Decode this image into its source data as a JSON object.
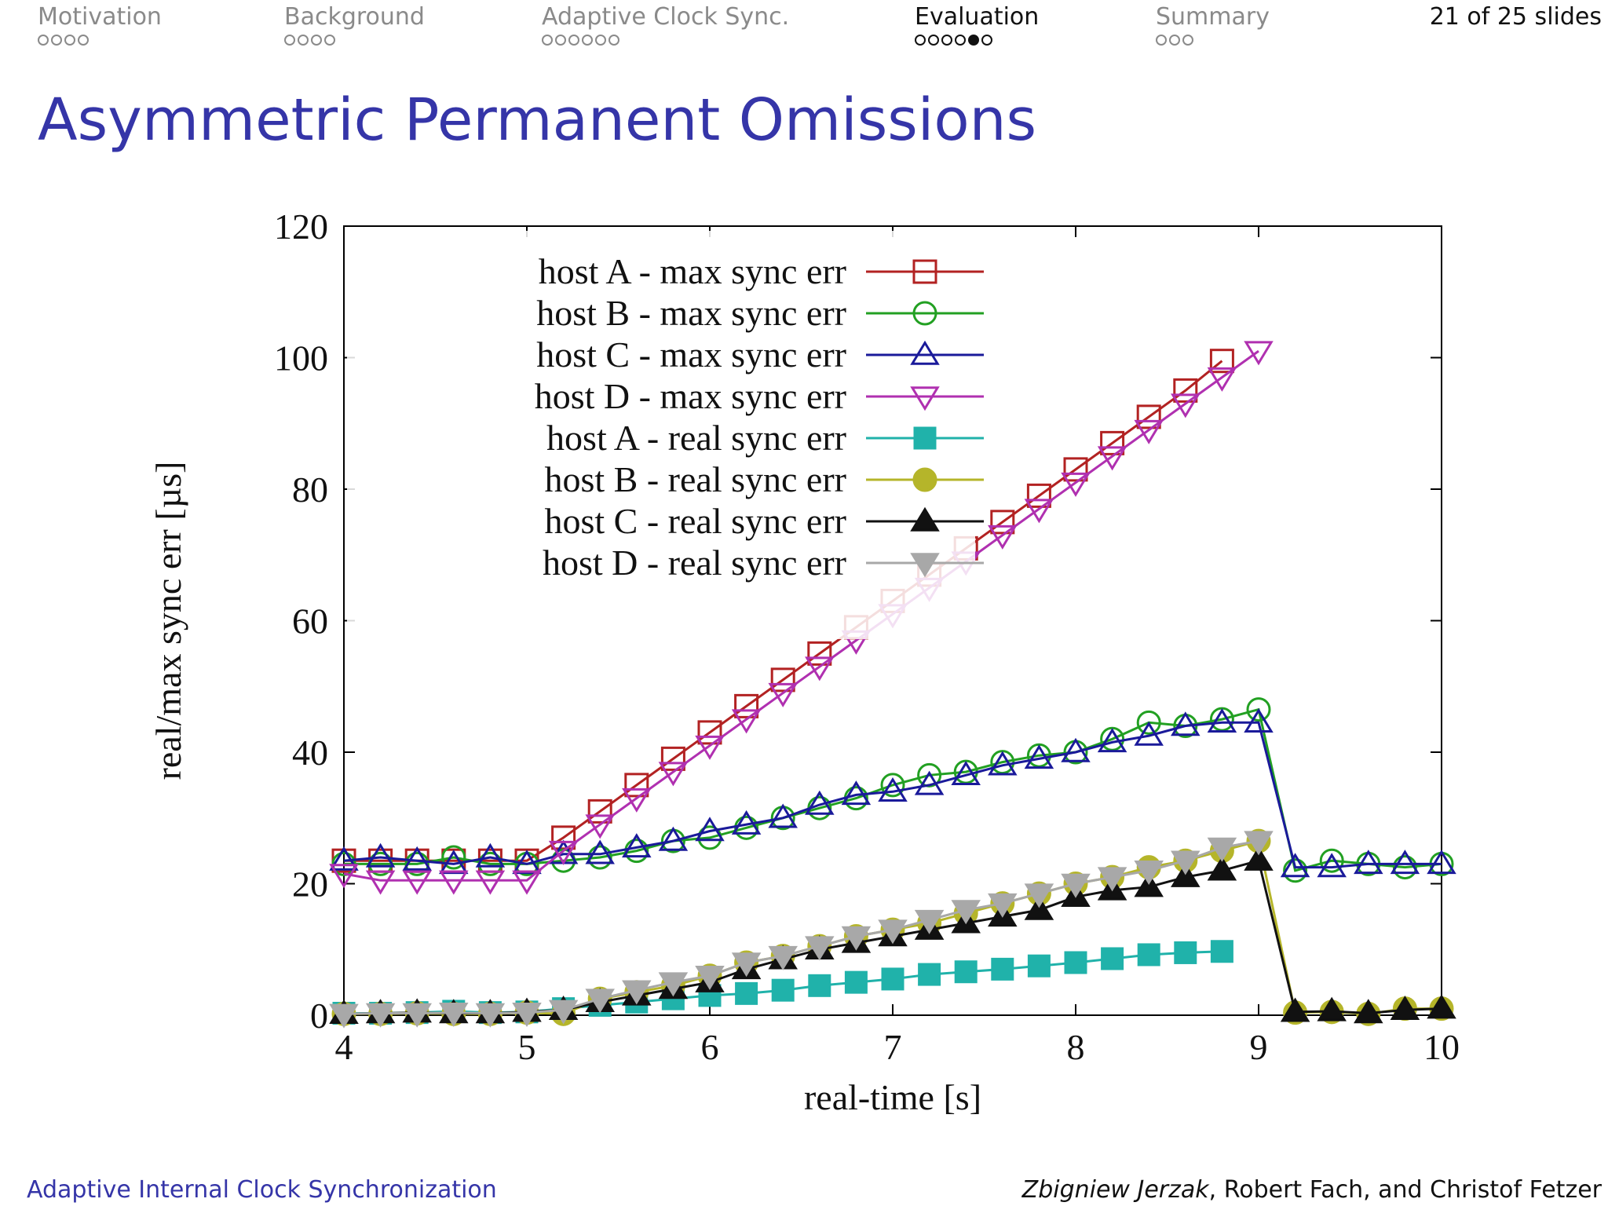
{
  "nav": {
    "sections": [
      {
        "label": "Motivation",
        "dots": 4,
        "filled": [],
        "active": false
      },
      {
        "label": "Background",
        "dots": 4,
        "filled": [],
        "active": false
      },
      {
        "label": "Adaptive Clock Sync.",
        "dots": 6,
        "filled": [],
        "active": false
      },
      {
        "label": "Evaluation",
        "dots": 6,
        "filled": [
          4
        ],
        "active": true
      },
      {
        "label": "Summary",
        "dots": 3,
        "filled": [],
        "active": false
      }
    ],
    "slide_counter": "21 of 25 slides"
  },
  "title": "Asymmetric Permanent Omissions",
  "footer": {
    "left": "Adaptive Internal Clock Synchronization",
    "author_primary": "Zbigniew Jerzak",
    "author_rest": ", Robert Fach, and Christof Fetzer"
  },
  "chart_data": {
    "type": "line",
    "title": "",
    "xlabel": "real-time [s]",
    "ylabel": "real/max sync err [µs]",
    "xlim": [
      4,
      10
    ],
    "ylim": [
      0,
      120
    ],
    "xticks": [
      4,
      5,
      6,
      7,
      8,
      9,
      10
    ],
    "yticks": [
      0,
      20,
      40,
      60,
      80,
      100,
      120
    ],
    "grid": false,
    "legend_position": "top-left",
    "series": [
      {
        "name": "host A - max sync err",
        "color": "#b22222",
        "marker": "square-open",
        "x": [
          4,
          4.2,
          4.4,
          4.6,
          4.8,
          5,
          5.2,
          5.4,
          5.6,
          5.8,
          6,
          6.2,
          6.4,
          6.6,
          6.8,
          7,
          7.2,
          7.4,
          7.6,
          7.8,
          8,
          8.2,
          8.4,
          8.6,
          8.8
        ],
        "y": [
          23.5,
          23.5,
          23.5,
          23.5,
          23.5,
          23.5,
          27,
          31,
          35,
          39,
          43,
          47,
          51,
          55,
          59,
          63,
          67,
          71,
          75,
          79,
          83,
          87,
          91,
          95,
          99.5
        ]
      },
      {
        "name": "host B - max sync err",
        "color": "#22a022",
        "marker": "circle-open",
        "x": [
          4,
          4.2,
          4.4,
          4.6,
          4.8,
          5,
          5.2,
          5.4,
          5.6,
          5.8,
          6,
          6.2,
          6.4,
          6.6,
          6.8,
          7,
          7.2,
          7.4,
          7.6,
          7.8,
          8,
          8.2,
          8.4,
          8.6,
          8.8,
          9,
          9.2,
          9.4,
          9.6,
          9.8,
          10
        ],
        "y": [
          23,
          23,
          23,
          24,
          23,
          23,
          23.5,
          24,
          25,
          26.5,
          27,
          28.5,
          30,
          31.5,
          33,
          35,
          36.5,
          37,
          38.5,
          39.5,
          40,
          42,
          44.5,
          44,
          45,
          46.5,
          22,
          23.5,
          23,
          22.5,
          23
        ]
      },
      {
        "name": "host C - max sync err",
        "color": "#1a1a9a",
        "marker": "triangle-up-open",
        "x": [
          4,
          4.2,
          4.4,
          4.6,
          4.8,
          5,
          5.2,
          5.4,
          5.6,
          5.8,
          6,
          6.2,
          6.4,
          6.6,
          6.8,
          7,
          7.2,
          7.4,
          7.6,
          7.8,
          8,
          8.2,
          8.4,
          8.6,
          8.8,
          9,
          9.2,
          9.4,
          9.6,
          9.8,
          10
        ],
        "y": [
          23.5,
          24,
          23.5,
          23,
          24,
          23,
          24.5,
          24.5,
          25.5,
          26.5,
          28,
          29,
          30,
          32,
          33.5,
          34,
          35,
          36.5,
          38,
          39,
          40,
          41.5,
          42.5,
          44,
          44.5,
          44.5,
          22.5,
          22.5,
          23,
          23,
          23
        ]
      },
      {
        "name": "host D - max sync err",
        "color": "#b030b0",
        "marker": "triangle-down-open",
        "x": [
          4,
          4.2,
          4.4,
          4.6,
          4.8,
          5,
          5.2,
          5.4,
          5.6,
          5.8,
          6,
          6.2,
          6.4,
          6.6,
          6.8,
          7,
          7.2,
          7.4,
          7.6,
          7.8,
          8,
          8.2,
          8.4,
          8.6,
          8.8,
          9
        ],
        "y": [
          21.5,
          20.5,
          20.5,
          20.5,
          20.5,
          20.5,
          25,
          29,
          33,
          37,
          41,
          45,
          49,
          53,
          57,
          61,
          65,
          69,
          73,
          77,
          81,
          85,
          89,
          93,
          97,
          101
        ]
      },
      {
        "name": "host A - real sync err",
        "color": "#20b2aa",
        "marker": "square-filled",
        "x": [
          4,
          4.2,
          4.4,
          4.6,
          4.8,
          5,
          5.2,
          5.4,
          5.6,
          5.8,
          6,
          6.2,
          6.4,
          6.6,
          6.8,
          7,
          7.2,
          7.4,
          7.6,
          7.8,
          8,
          8.2,
          8.4,
          8.6,
          8.8
        ],
        "y": [
          0.3,
          0.3,
          0.4,
          0.6,
          0.4,
          0.5,
          1,
          1.5,
          2,
          2.5,
          3,
          3.3,
          3.8,
          4.5,
          5,
          5.5,
          6.2,
          6.6,
          7,
          7.5,
          8,
          8.6,
          9.2,
          9.5,
          9.7
        ]
      },
      {
        "name": "host B - real sync err",
        "color": "#b5b52a",
        "marker": "circle-filled",
        "x": [
          4,
          4.2,
          4.4,
          4.6,
          4.8,
          5,
          5.2,
          5.4,
          5.6,
          5.8,
          6,
          6.2,
          6.4,
          6.6,
          6.8,
          7,
          7.2,
          7.4,
          7.6,
          7.8,
          8,
          8.2,
          8.4,
          8.6,
          8.8,
          9,
          9.2,
          9.4,
          9.6,
          9.8,
          10
        ],
        "y": [
          0.2,
          0.2,
          0.3,
          0.2,
          0.2,
          0.4,
          0.2,
          2.5,
          3.5,
          4.5,
          6,
          8,
          9,
          10.5,
          12,
          13,
          14,
          15.5,
          17,
          18.5,
          20,
          21,
          22.5,
          23.5,
          25,
          26.5,
          0.4,
          0.5,
          0.2,
          1,
          1
        ]
      },
      {
        "name": "host C - real sync err",
        "color": "#111111",
        "marker": "triangle-up-filled",
        "x": [
          4,
          4.2,
          4.4,
          4.6,
          4.8,
          5,
          5.2,
          5.4,
          5.6,
          5.8,
          6,
          6.2,
          6.4,
          6.6,
          6.8,
          7,
          7.2,
          7.4,
          7.6,
          7.8,
          8,
          8.2,
          8.4,
          8.6,
          8.8,
          9,
          9.2,
          9.4,
          9.6,
          9.8,
          10
        ],
        "y": [
          0.2,
          0.3,
          0.4,
          0.3,
          0.3,
          0.5,
          0.8,
          2,
          3,
          4,
          5,
          7,
          8.5,
          10,
          11,
          12,
          13,
          14,
          15,
          16,
          18,
          19,
          19.5,
          21,
          22,
          23.5,
          0.5,
          0.6,
          0.3,
          0.8,
          1
        ]
      },
      {
        "name": "host D - real sync err",
        "color": "#a8a8a8",
        "marker": "triangle-down-filled",
        "x": [
          4,
          4.2,
          4.4,
          4.6,
          4.8,
          5,
          5.2,
          5.4,
          5.6,
          5.8,
          6,
          6.2,
          6.4,
          6.6,
          6.8,
          7,
          7.2,
          7.4,
          7.6,
          7.8,
          8,
          8.2,
          8.4,
          8.6,
          8.8,
          9
        ],
        "y": [
          0.2,
          0.3,
          0.3,
          0.4,
          0.3,
          0.4,
          0.8,
          2.5,
          3.8,
          5,
          6,
          8,
          9,
          10.5,
          12,
          13,
          14.5,
          16,
          17,
          18.5,
          20,
          21,
          22,
          23.5,
          25.5,
          26.5
        ]
      }
    ]
  }
}
